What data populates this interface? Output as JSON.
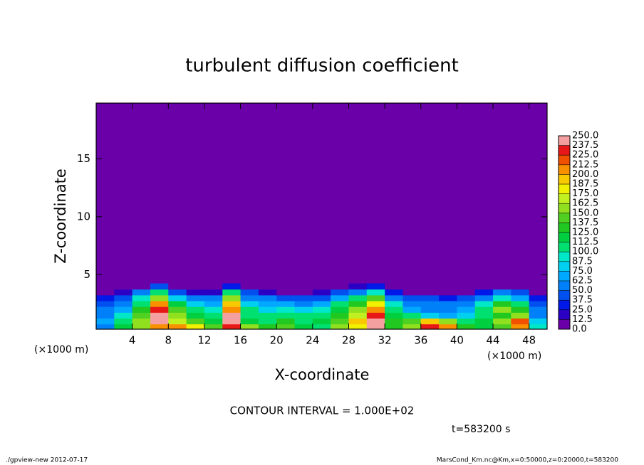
{
  "chart_data": {
    "type": "contour",
    "title": "turbulent diffusion coefficient",
    "xlabel": "X-coordinate",
    "ylabel": "Z-coordinate",
    "xunit": "(×1000 m)",
    "yunit": "(×1000 m)",
    "xlim": [
      0,
      50
    ],
    "ylim": [
      0.3,
      19.8
    ],
    "xticks": [
      4,
      8,
      12,
      16,
      20,
      24,
      28,
      32,
      36,
      40,
      44,
      48
    ],
    "yticks": [
      5,
      10,
      15
    ],
    "x": [
      1,
      3,
      5,
      7,
      9,
      11,
      13,
      15,
      17,
      19,
      21,
      23,
      25,
      27,
      29,
      31,
      33,
      35,
      37,
      39,
      41,
      43,
      45,
      47,
      49
    ],
    "z": [
      0.5,
      1.0,
      1.5,
      2.0,
      2.5,
      3.0,
      3.5,
      4.0
    ],
    "values": [
      [
        60,
        120,
        150,
        210,
        200,
        180,
        140,
        230,
        160,
        130,
        140,
        120,
        110,
        150,
        180,
        250,
        130,
        160,
        230,
        200,
        130,
        120,
        140,
        210,
        90
      ],
      [
        70,
        110,
        160,
        250,
        170,
        140,
        120,
        250,
        120,
        110,
        130,
        110,
        120,
        140,
        190,
        240,
        130,
        140,
        190,
        150,
        110,
        120,
        150,
        220,
        80
      ],
      [
        60,
        90,
        140,
        240,
        150,
        120,
        110,
        240,
        110,
        100,
        110,
        100,
        110,
        130,
        170,
        230,
        120,
        100,
        80,
        70,
        80,
        110,
        130,
        160,
        60
      ],
      [
        50,
        70,
        130,
        230,
        140,
        100,
        90,
        210,
        100,
        80,
        90,
        80,
        90,
        120,
        150,
        210,
        110,
        70,
        60,
        60,
        70,
        100,
        160,
        130,
        50
      ],
      [
        40,
        60,
        110,
        200,
        120,
        80,
        70,
        190,
        80,
        70,
        70,
        60,
        70,
        100,
        130,
        180,
        90,
        50,
        50,
        50,
        60,
        90,
        130,
        100,
        40
      ],
      [
        30,
        40,
        90,
        160,
        80,
        50,
        50,
        160,
        60,
        50,
        40,
        40,
        40,
        70,
        100,
        140,
        60,
        40,
        40,
        30,
        40,
        60,
        90,
        70,
        30
      ],
      [
        10,
        15,
        50,
        110,
        40,
        20,
        20,
        100,
        40,
        20,
        10,
        10,
        15,
        40,
        60,
        90,
        30,
        10,
        10,
        5,
        10,
        30,
        50,
        40,
        10
      ],
      [
        0,
        0,
        10,
        40,
        5,
        0,
        0,
        30,
        10,
        0,
        0,
        0,
        0,
        5,
        15,
        30,
        5,
        0,
        0,
        0,
        0,
        5,
        10,
        5,
        0
      ]
    ],
    "levels": [
      {
        "value": 0,
        "label": "0.0"
      },
      {
        "value": 12.5,
        "label": "12.5"
      },
      {
        "value": 25,
        "label": "25.0"
      },
      {
        "value": 37.5,
        "label": "37.5"
      },
      {
        "value": 50,
        "label": "50.0"
      },
      {
        "value": 62.5,
        "label": "62.5"
      },
      {
        "value": 75,
        "label": "75.0"
      },
      {
        "value": 87.5,
        "label": "87.5"
      },
      {
        "value": 100,
        "label": "100.0"
      },
      {
        "value": 112.5,
        "label": "112.5"
      },
      {
        "value": 125,
        "label": "125.0"
      },
      {
        "value": 137.5,
        "label": "137.5"
      },
      {
        "value": 150,
        "label": "150.0"
      },
      {
        "value": 162.5,
        "label": "162.5"
      },
      {
        "value": 175,
        "label": "175.0"
      },
      {
        "value": 187.5,
        "label": "187.5"
      },
      {
        "value": 200,
        "label": "200.0"
      },
      {
        "value": 212.5,
        "label": "212.5"
      },
      {
        "value": 225,
        "label": "225.0"
      },
      {
        "value": 237.5,
        "label": "237.5"
      },
      {
        "value": 250,
        "label": "250.0"
      }
    ],
    "colors": [
      "#6a00a8",
      "#2c00c4",
      "#0018e8",
      "#0050f0",
      "#0080f8",
      "#00a8ff",
      "#00d0f0",
      "#00e8c8",
      "#00e070",
      "#00d040",
      "#20c820",
      "#50d020",
      "#90e020",
      "#c0f020",
      "#f0f000",
      "#f8c800",
      "#f89000",
      "#f05000",
      "#e81818",
      "#f4a0a0"
    ],
    "contour_interval": "CONTOUR INTERVAL = 1.000E+02",
    "time_label": "t=583200 s",
    "footer_left": "./gpview-new  2012-07-17",
    "footer_right": "MarsCond_Km.nc@Km,x=0:50000,z=0:20000,t=583200"
  }
}
